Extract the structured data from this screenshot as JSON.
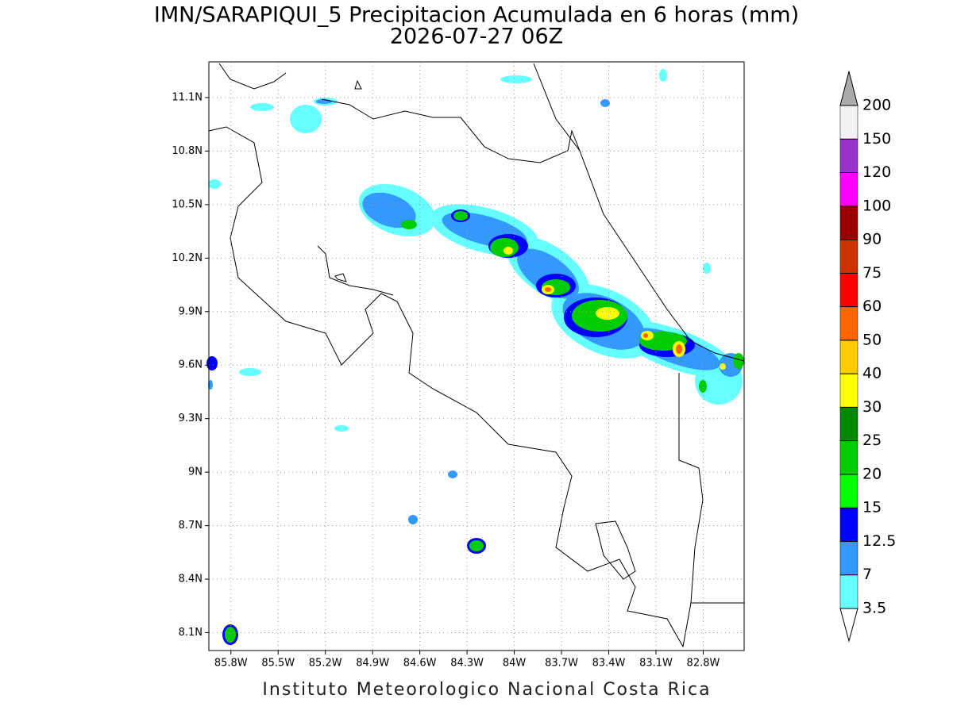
{
  "chart_data": {
    "type": "map",
    "title": "IMN/SARAPIQUI_5 Precipitacion Acumulada en 6 horas (mm)",
    "subtitle": "2026-07-27 06Z",
    "footer": "Instituto Meteorologico Nacional Costa Rica",
    "xlim": [
      -85.94,
      -82.54
    ],
    "ylim": [
      8.0,
      11.3
    ],
    "xticks": [
      {
        "value": -85.8,
        "label": "85.8W"
      },
      {
        "value": -85.5,
        "label": "85.5W"
      },
      {
        "value": -85.2,
        "label": "85.2W"
      },
      {
        "value": -84.9,
        "label": "84.9W"
      },
      {
        "value": -84.6,
        "label": "84.6W"
      },
      {
        "value": -84.3,
        "label": "84.3W"
      },
      {
        "value": -84,
        "label": "84W"
      },
      {
        "value": -83.7,
        "label": "83.7W"
      },
      {
        "value": -83.4,
        "label": "83.4W"
      },
      {
        "value": -83.1,
        "label": "83.1W"
      },
      {
        "value": -82.8,
        "label": "82.8W"
      }
    ],
    "yticks": [
      {
        "value": 8.1,
        "label": "8.1N"
      },
      {
        "value": 8.4,
        "label": "8.4N"
      },
      {
        "value": 8.7,
        "label": "8.7N"
      },
      {
        "value": 9,
        "label": "9N"
      },
      {
        "value": 9.3,
        "label": "9.3N"
      },
      {
        "value": 9.6,
        "label": "9.6N"
      },
      {
        "value": 9.9,
        "label": "9.9N"
      },
      {
        "value": 10.2,
        "label": "10.2N"
      },
      {
        "value": 10.5,
        "label": "10.5N"
      },
      {
        "value": 10.8,
        "label": "10.8N"
      },
      {
        "value": 11.1,
        "label": "11.1N"
      }
    ],
    "grid": true,
    "colorbar": {
      "levels": [
        3.5,
        7,
        12.5,
        15,
        20,
        25,
        30,
        40,
        50,
        60,
        75,
        90,
        100,
        120,
        150,
        200
      ],
      "colors": [
        "#ffffff",
        "#66ffff",
        "#3399ff",
        "#0000ff",
        "#00ff00",
        "#00cc00",
        "#008800",
        "#ffff00",
        "#ffcc00",
        "#ff6600",
        "#ff0000",
        "#cc3300",
        "#990000",
        "#ff00ff",
        "#9933cc",
        "#f2f2f2",
        "#aaaaaa"
      ]
    }
  }
}
